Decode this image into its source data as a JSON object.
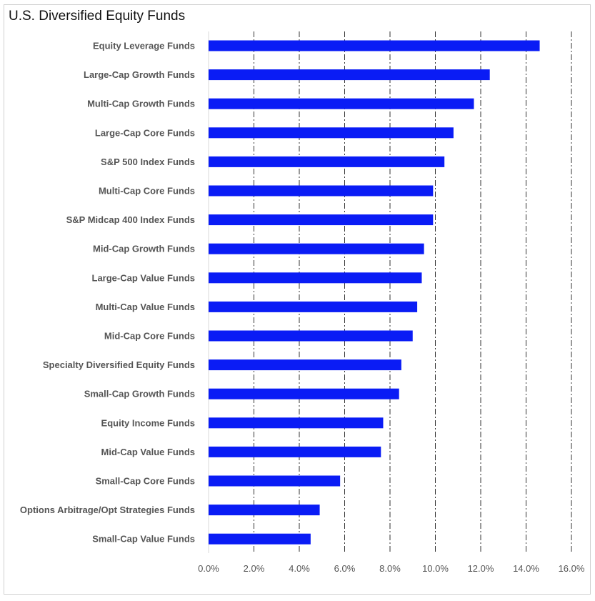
{
  "chart_data": {
    "type": "bar",
    "orientation": "horizontal",
    "title": "U.S. Diversified Equity Funds",
    "xlabel": "",
    "ylabel": "",
    "categories": [
      "Equity Leverage Funds",
      "Large-Cap Growth Funds",
      "Multi-Cap Growth Funds",
      "Large-Cap Core Funds",
      "S&P 500 Index Funds",
      "Multi-Cap Core Funds",
      "S&P Midcap 400 Index Funds",
      "Mid-Cap Growth Funds",
      "Large-Cap Value Funds",
      "Multi-Cap Value Funds",
      "Mid-Cap Core Funds",
      "Specialty Diversified Equity Funds",
      "Small-Cap Growth Funds",
      "Equity Income Funds",
      "Mid-Cap Value Funds",
      "Small-Cap Core Funds",
      "Options Arbitrage/Opt Strategies Funds",
      "Small-Cap Value Funds"
    ],
    "values": [
      14.6,
      12.4,
      11.7,
      10.8,
      10.4,
      9.9,
      9.9,
      9.5,
      9.4,
      9.2,
      9.0,
      8.5,
      8.4,
      7.7,
      7.6,
      5.8,
      4.9,
      4.5
    ],
    "xlim": [
      0,
      16
    ],
    "x_ticks": [
      0,
      2,
      4,
      6,
      8,
      10,
      12,
      14,
      16
    ],
    "x_tick_labels": [
      "0.0%",
      "2.0%",
      "4.0%",
      "6.0%",
      "8.0%",
      "10.0%",
      "12.0%",
      "14.0%",
      "16.0%"
    ],
    "gridlines": "vertical dash-dot",
    "legend": "none",
    "colors": {
      "bar": "#0a1cf5",
      "gridline": "#333333",
      "axis": "#d9d9d9",
      "text": "#555555"
    }
  }
}
